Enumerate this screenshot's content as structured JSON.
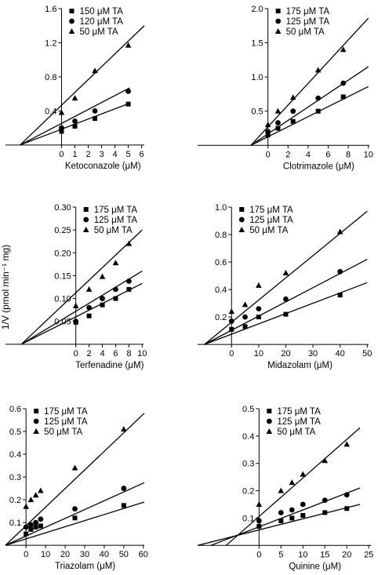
{
  "figure": {
    "ylabel": "1/V (pmol min⁻¹ mg)"
  },
  "chart_data": [
    {
      "type": "line",
      "xlabel": "Ketoconazole (μM)",
      "xlim": [
        -4.2,
        6.2
      ],
      "ylim": [
        -0.02,
        1.6
      ],
      "xticks": [
        0,
        1,
        2,
        3,
        4,
        5,
        6
      ],
      "yticks": [
        0.4,
        0.8,
        1.2,
        1.6
      ],
      "yticklabels": [
        "0.4",
        "0.8",
        "1.2",
        "1.6"
      ],
      "series": [
        {
          "name": "150 μM TA",
          "marker": "square",
          "x": [
            0,
            1,
            2.5,
            5
          ],
          "y": [
            0.16,
            0.22,
            0.31,
            0.48
          ],
          "fit": [
            [
              -3.1,
              0
            ],
            [
              5.1,
              0.49
            ]
          ]
        },
        {
          "name": "120 μM TA",
          "marker": "circle",
          "x": [
            0,
            1,
            2.5,
            5
          ],
          "y": [
            0.2,
            0.28,
            0.4,
            0.63
          ],
          "fit": [
            [
              -3.1,
              0
            ],
            [
              5.1,
              0.67
            ]
          ]
        },
        {
          "name": "50 μM TA",
          "marker": "triangle",
          "x": [
            0,
            1,
            2.5,
            5
          ],
          "y": [
            0.38,
            0.55,
            0.87,
            1.17
          ],
          "fit": [
            [
              -3.1,
              0
            ],
            [
              6.2,
              1.4
            ]
          ]
        }
      ]
    },
    {
      "type": "line",
      "xlabel": "Clotrimazole (μM)",
      "xlim": [
        -7,
        10.1
      ],
      "ylim": [
        -0.02,
        2.0
      ],
      "xticks": [
        0,
        2,
        4,
        6,
        8,
        10
      ],
      "yticks": [
        0.5,
        1.0,
        1.5,
        2.0
      ],
      "yticklabels": [
        "0.5",
        "1.0",
        "1.5",
        "2.0"
      ],
      "series": [
        {
          "name": "175 μM TA",
          "marker": "square",
          "x": [
            0,
            1,
            2.5,
            5,
            7.5
          ],
          "y": [
            0.15,
            0.25,
            0.35,
            0.5,
            0.71
          ],
          "fit": [
            [
              -1.7,
              0
            ],
            [
              10,
              0.86
            ]
          ]
        },
        {
          "name": "125 μM TA",
          "marker": "circle",
          "x": [
            0,
            1,
            2.5,
            5,
            7.5
          ],
          "y": [
            0.2,
            0.33,
            0.5,
            0.69,
            0.91
          ],
          "fit": [
            [
              -1.7,
              0
            ],
            [
              10,
              1.15
            ]
          ]
        },
        {
          "name": "50 μM TA",
          "marker": "triangle",
          "x": [
            0,
            1,
            2.5,
            5,
            7.5
          ],
          "y": [
            0.3,
            0.5,
            0.7,
            1.1,
            1.4
          ],
          "fit": [
            [
              -1.7,
              0
            ],
            [
              10,
              1.86
            ]
          ]
        }
      ]
    },
    {
      "type": "line",
      "xlabel": "Terfenadine (μM)",
      "xlim": [
        -10.6,
        10.2
      ],
      "ylim": [
        -0.002,
        0.3
      ],
      "xticks": [
        0,
        2,
        4,
        6,
        8,
        10
      ],
      "yticks": [
        0.05,
        0.1,
        0.15,
        0.2,
        0.25,
        0.3
      ],
      "yticklabels": [
        "0.05",
        "0.10",
        "0.15",
        "0.20",
        "0.25",
        "0.30"
      ],
      "series": [
        {
          "name": "175 μM TA",
          "marker": "square",
          "x": [
            0,
            2,
            4,
            6,
            8
          ],
          "y": [
            0.048,
            0.062,
            0.086,
            0.1,
            0.12
          ],
          "fit": [
            [
              -8.2,
              0
            ],
            [
              10,
              0.133
            ]
          ]
        },
        {
          "name": "125 μM TA",
          "marker": "circle",
          "x": [
            0,
            2,
            4,
            6,
            8
          ],
          "y": [
            0.05,
            0.08,
            0.1,
            0.12,
            0.138
          ],
          "fit": [
            [
              -8.2,
              0
            ],
            [
              10,
              0.16
            ]
          ]
        },
        {
          "name": "50 μM TA",
          "marker": "triangle",
          "x": [
            0,
            2,
            4,
            6,
            8
          ],
          "y": [
            0.084,
            0.12,
            0.148,
            0.178,
            0.22
          ],
          "fit": [
            [
              -8.2,
              0
            ],
            [
              10,
              0.25
            ]
          ]
        }
      ]
    },
    {
      "type": "line",
      "xlabel": "Midazolam (μM)",
      "xlim": [
        -12.5,
        50.5
      ],
      "ylim": [
        -0.005,
        1.0
      ],
      "xticks": [
        0,
        10,
        20,
        30,
        40,
        50
      ],
      "yticks": [
        0.2,
        0.4,
        0.6,
        0.8,
        1.0
      ],
      "yticklabels": [
        "0.2",
        "0.4",
        "0.6",
        "0.8",
        "1.0"
      ],
      "series": [
        {
          "name": "175 μM TA",
          "marker": "square",
          "x": [
            0,
            5,
            10,
            20,
            40
          ],
          "y": [
            0.11,
            0.13,
            0.2,
            0.22,
            0.36
          ],
          "fit": [
            [
              -10,
              0
            ],
            [
              50,
              0.45
            ]
          ]
        },
        {
          "name": "125 μM TA",
          "marker": "circle",
          "x": [
            0,
            5,
            10,
            20,
            40
          ],
          "y": [
            0.17,
            0.2,
            0.26,
            0.33,
            0.53
          ],
          "fit": [
            [
              -10,
              0
            ],
            [
              50,
              0.62
            ]
          ]
        },
        {
          "name": "50 μM TA",
          "marker": "triangle",
          "x": [
            0,
            5,
            10,
            20,
            40
          ],
          "y": [
            0.24,
            0.29,
            0.43,
            0.52,
            0.82
          ],
          "fit": [
            [
              -10,
              0
            ],
            [
              50,
              0.97
            ]
          ]
        }
      ]
    },
    {
      "type": "line",
      "xlabel": "Triazolam (μM)",
      "xlim": [
        -10.5,
        60.5
      ],
      "ylim": [
        -0.003,
        0.6
      ],
      "xticks": [
        0,
        10,
        20,
        30,
        40,
        50,
        60
      ],
      "yticks": [
        0.1,
        0.2,
        0.3,
        0.4,
        0.5,
        0.6
      ],
      "yticklabels": [
        "0.1",
        "0.2",
        "0.3",
        "0.4",
        "0.5",
        "0.6"
      ],
      "series": [
        {
          "name": "175 μM TA",
          "marker": "square",
          "x": [
            0,
            2.5,
            5,
            7.5,
            25,
            50
          ],
          "y": [
            0.05,
            0.07,
            0.08,
            0.085,
            0.12,
            0.175
          ],
          "fit": [
            [
              -10.5,
              0
            ],
            [
              60.5,
              0.19
            ]
          ]
        },
        {
          "name": "125 μM TA",
          "marker": "circle",
          "x": [
            0,
            2.5,
            5,
            7.5,
            25,
            50
          ],
          "y": [
            0.08,
            0.09,
            0.1,
            0.115,
            0.16,
            0.25
          ],
          "fit": [
            [
              -10.5,
              0
            ],
            [
              60.5,
              0.275
            ]
          ]
        },
        {
          "name": "50 μM TA",
          "marker": "triangle",
          "x": [
            0,
            2.5,
            5,
            7.5,
            25,
            50
          ],
          "y": [
            0.17,
            0.2,
            0.22,
            0.24,
            0.34,
            0.51
          ],
          "fit": [
            [
              -10.5,
              0
            ],
            [
              60.5,
              0.58
            ]
          ]
        }
      ]
    },
    {
      "type": "line",
      "xlabel": "Quinine (μM)",
      "xlim": [
        -14,
        25.5
      ],
      "ylim": [
        -0.002,
        0.5
      ],
      "xticks": [
        0,
        5,
        10,
        15,
        20,
        25
      ],
      "yticks": [
        0.1,
        0.2,
        0.3,
        0.4,
        0.5
      ],
      "yticklabels": [
        "0.1",
        "0.2",
        "0.3",
        "0.4",
        "0.5"
      ],
      "series": [
        {
          "name": "175 μM TA",
          "marker": "square",
          "x": [
            0,
            5,
            7.5,
            10,
            15,
            20
          ],
          "y": [
            0.07,
            0.09,
            0.1,
            0.11,
            0.12,
            0.135
          ],
          "fit": [
            [
              -14,
              0
            ],
            [
              23,
              0.15
            ]
          ]
        },
        {
          "name": "125 μM TA",
          "marker": "circle",
          "x": [
            0,
            5,
            7.5,
            10,
            15,
            20
          ],
          "y": [
            0.09,
            0.12,
            0.13,
            0.15,
            0.165,
            0.185
          ],
          "fit": [
            [
              -11,
              0
            ],
            [
              23,
              0.21
            ]
          ]
        },
        {
          "name": "50 μM TA",
          "marker": "triangle",
          "x": [
            0,
            5,
            7.5,
            10,
            15,
            20
          ],
          "y": [
            0.15,
            0.2,
            0.23,
            0.26,
            0.31,
            0.37
          ],
          "fit": [
            [
              -7.5,
              0
            ],
            [
              23,
              0.43
            ]
          ]
        }
      ]
    }
  ]
}
